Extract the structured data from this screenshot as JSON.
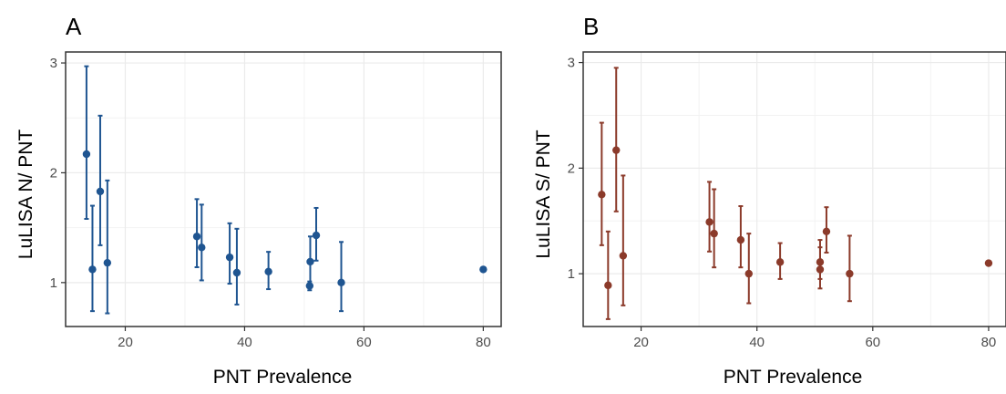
{
  "panels": [
    {
      "letter": "A",
      "xlabel": "PNT Prevalence",
      "ylabel": "LuLISA N/ PNT"
    },
    {
      "letter": "B",
      "xlabel": "PNT Prevalence",
      "ylabel": "LuLISA S/ PNT"
    }
  ],
  "chart_data": [
    {
      "type": "scatter",
      "panel": "A",
      "xlabel": "PNT Prevalence",
      "ylabel": "LuLISA N/ PNT",
      "xlim": [
        10,
        83
      ],
      "ylim": [
        0.6,
        3.1
      ],
      "xticks": [
        20,
        40,
        60,
        80
      ],
      "yticks": [
        1,
        2,
        3
      ],
      "grid": true,
      "color": "#1f5591",
      "points": [
        {
          "x": 13.5,
          "y": 2.17,
          "ymin": 1.58,
          "ymax": 2.97
        },
        {
          "x": 14.5,
          "y": 1.12,
          "ymin": 0.74,
          "ymax": 1.7
        },
        {
          "x": 15.8,
          "y": 1.83,
          "ymin": 1.34,
          "ymax": 2.52
        },
        {
          "x": 17.0,
          "y": 1.18,
          "ymin": 0.72,
          "ymax": 1.93
        },
        {
          "x": 32.0,
          "y": 1.42,
          "ymin": 1.14,
          "ymax": 1.76
        },
        {
          "x": 32.8,
          "y": 1.32,
          "ymin": 1.02,
          "ymax": 1.71
        },
        {
          "x": 37.5,
          "y": 1.23,
          "ymin": 0.99,
          "ymax": 1.54
        },
        {
          "x": 38.7,
          "y": 1.09,
          "ymin": 0.8,
          "ymax": 1.49
        },
        {
          "x": 44.0,
          "y": 1.1,
          "ymin": 0.94,
          "ymax": 1.28
        },
        {
          "x": 51.0,
          "y": 1.19,
          "ymin": 0.98,
          "ymax": 1.42
        },
        {
          "x": 50.9,
          "y": 0.97,
          "ymin": 0.93,
          "ymax": 1.01
        },
        {
          "x": 52.0,
          "y": 1.43,
          "ymin": 1.2,
          "ymax": 1.68
        },
        {
          "x": 56.2,
          "y": 1.0,
          "ymin": 0.74,
          "ymax": 1.37
        },
        {
          "x": 80.0,
          "y": 1.12,
          "ymin": 1.11,
          "ymax": 1.13
        }
      ]
    },
    {
      "type": "scatter",
      "panel": "B",
      "xlabel": "PNT Prevalence",
      "ylabel": "LuLISA S/ PNT",
      "xlim": [
        10,
        83
      ],
      "ylim": [
        0.5,
        3.1
      ],
      "xticks": [
        20,
        40,
        60,
        80
      ],
      "yticks": [
        1,
        2,
        3
      ],
      "grid": true,
      "color": "#8b3a2a",
      "points": [
        {
          "x": 13.2,
          "y": 1.75,
          "ymin": 1.27,
          "ymax": 2.43
        },
        {
          "x": 14.3,
          "y": 0.89,
          "ymin": 0.57,
          "ymax": 1.4
        },
        {
          "x": 15.7,
          "y": 2.17,
          "ymin": 1.59,
          "ymax": 2.95
        },
        {
          "x": 16.9,
          "y": 1.17,
          "ymin": 0.7,
          "ymax": 1.93
        },
        {
          "x": 31.8,
          "y": 1.49,
          "ymin": 1.21,
          "ymax": 1.87
        },
        {
          "x": 32.6,
          "y": 1.38,
          "ymin": 1.06,
          "ymax": 1.8
        },
        {
          "x": 37.2,
          "y": 1.32,
          "ymin": 1.06,
          "ymax": 1.64
        },
        {
          "x": 38.6,
          "y": 1.0,
          "ymin": 0.72,
          "ymax": 1.38
        },
        {
          "x": 44.0,
          "y": 1.11,
          "ymin": 0.95,
          "ymax": 1.29
        },
        {
          "x": 50.9,
          "y": 1.11,
          "ymin": 0.95,
          "ymax": 1.32
        },
        {
          "x": 50.9,
          "y": 1.04,
          "ymin": 0.86,
          "ymax": 1.25
        },
        {
          "x": 52.0,
          "y": 1.4,
          "ymin": 1.2,
          "ymax": 1.63
        },
        {
          "x": 56.0,
          "y": 1.0,
          "ymin": 0.74,
          "ymax": 1.36
        },
        {
          "x": 80.0,
          "y": 1.1,
          "ymin": 1.09,
          "ymax": 1.12
        }
      ]
    }
  ]
}
